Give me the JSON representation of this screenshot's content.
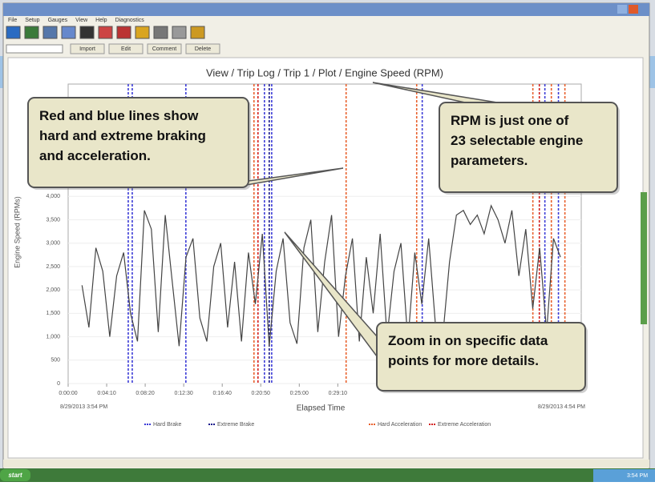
{
  "window": {
    "menu": [
      "File",
      "Setup",
      "Gauges",
      "View",
      "Help",
      "Diagnostics"
    ],
    "toolbar": [
      "Import",
      "Edit",
      "Comment",
      "Delete"
    ]
  },
  "chart": {
    "type": "line",
    "title": "View / Trip Log / Trip 1 / Plot / Engine Speed (RPM)",
    "y_label": "Engine Speed (RPMs)",
    "x_label": "Elapsed Time",
    "start_label": "8/29/2013 3:54 PM",
    "end_label": "8/29/2013 4:54 PM",
    "xlim": [
      0,
      3330
    ],
    "ylim": [
      0,
      6400
    ],
    "grid": true,
    "xticks": [
      {
        "value": 0,
        "label": "0:00:00"
      },
      {
        "value": 250,
        "label": "0:04:10"
      },
      {
        "value": 500,
        "label": "0:08:20"
      },
      {
        "value": 750,
        "label": "0:12:30"
      },
      {
        "value": 1000,
        "label": "0:16:40"
      },
      {
        "value": 1250,
        "label": "0:20:50"
      },
      {
        "value": 1500,
        "label": "0:25:00"
      },
      {
        "value": 1750,
        "label": "0:29:10"
      }
    ],
    "yticks": [
      0,
      500,
      {
        "value": 1000,
        "label": "1,000"
      },
      {
        "value": 1500,
        "label": "1,500"
      },
      {
        "value": 2000,
        "label": "2,000"
      },
      {
        "value": 2500,
        "label": "2,500"
      },
      {
        "value": 3000,
        "label": "3,000"
      },
      {
        "value": 3500,
        "label": "3,500"
      },
      {
        "value": 4000,
        "label": "4,000"
      }
    ],
    "x": [
      90,
      135,
      180,
      225,
      270,
      315,
      360,
      405,
      450,
      495,
      540,
      585,
      630,
      675,
      720,
      765,
      810,
      855,
      900,
      945,
      990,
      1035,
      1080,
      1125,
      1170,
      1215,
      1260,
      1305,
      1350,
      1395,
      1440,
      1485,
      1530,
      1575,
      1620,
      1665,
      1710,
      1755,
      1800,
      1845,
      1890,
      1935,
      1980,
      2025,
      2070,
      2115,
      2160,
      2205,
      2250,
      2295,
      2340,
      2385,
      2430,
      2475,
      2520,
      2565,
      2610,
      2655,
      2700,
      2745,
      2790,
      2835,
      2880,
      2925,
      2970,
      3015,
      3060,
      3105,
      3150,
      3195
    ],
    "series": [
      {
        "color": "#444444",
        "values": [
          2100,
          1200,
          2900,
          2400,
          1000,
          2300,
          2800,
          1500,
          900,
          3700,
          3300,
          1100,
          3600,
          2200,
          800,
          2700,
          3100,
          1400,
          900,
          2500,
          3000,
          1200,
          2600,
          900,
          2800,
          1700,
          3200,
          800,
          2400,
          3100,
          1300,
          850,
          2900,
          3500,
          1100,
          2600,
          3600,
          1000,
          2300,
          3100,
          900,
          2700,
          1500,
          3200,
          1000,
          2400,
          3000,
          900,
          2800,
          1700,
          3100,
          1200,
          950,
          2600,
          3600,
          3700,
          3400,
          3600,
          3200,
          3800,
          3500,
          3000,
          3700,
          2300,
          3300,
          1600,
          2900,
          1100,
          3100,
          2700
        ]
      }
    ],
    "events": [
      {
        "name": "Hard Brake",
        "color": "#3b3bd6",
        "x": [
          390,
          416,
          764,
          1274,
          1321,
          2298,
          3094,
          3182
        ]
      },
      {
        "name": "Extreme Brake",
        "color": "#1a1a8c",
        "x": [
          1305
        ]
      },
      {
        "name": "Hard Acceleration",
        "color": "#e8602c",
        "x": [
          1206,
          1804,
          2262,
          3016,
          3136,
          3224
        ]
      },
      {
        "name": "Extreme Acceleration",
        "color": "#d42020",
        "x": [
          1232,
          3058
        ]
      }
    ]
  },
  "callouts": [
    {
      "lines": [
        "Red and blue lines show",
        "hard and extreme braking",
        "and acceleration."
      ]
    },
    {
      "lines": [
        "RPM is just one of",
        "23 selectable engine",
        "parameters."
      ]
    },
    {
      "lines": [
        "Zoom in on specific data",
        "points for more details."
      ]
    }
  ],
  "taskbar": {
    "start": "start",
    "clock": "3:54 PM"
  }
}
